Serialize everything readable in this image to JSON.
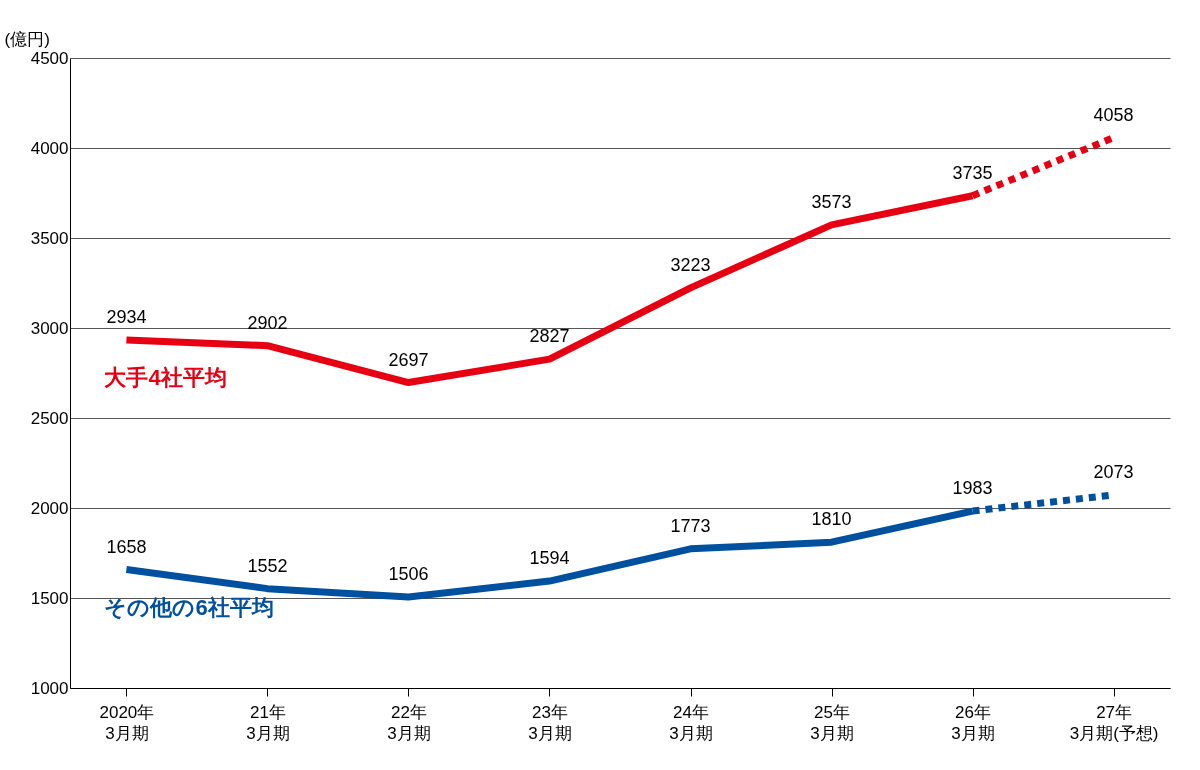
{
  "chart_data": {
    "type": "line",
    "ylabel": "(億円)",
    "categories": [
      "2020年\n3月期",
      "21年\n3月期",
      "22年\n3月期",
      "23年\n3月期",
      "24年\n3月期",
      "25年\n3月期",
      "26年\n3月期",
      "27年\n3月期(予想)"
    ],
    "ylim": [
      1000,
      4500
    ],
    "yticks": [
      1000,
      1500,
      2000,
      2500,
      3000,
      3500,
      4000,
      4500
    ],
    "grid": "y",
    "series": [
      {
        "name": "大手4社平均",
        "color": "#e60012",
        "line_style": "solid",
        "values": [
          2934,
          2902,
          2697,
          2827,
          3223,
          3573,
          3735,
          null
        ],
        "value_labels": [
          "2934",
          "2902",
          "2697",
          "2827",
          "3223",
          "3573",
          "3735",
          null
        ]
      },
      {
        "color": "#e60012",
        "line_style": "dotted",
        "values": [
          null,
          null,
          null,
          null,
          null,
          null,
          3735,
          4058
        ],
        "value_labels": [
          null,
          null,
          null,
          null,
          null,
          null,
          null,
          "4058"
        ]
      },
      {
        "name": "その他の6社平均",
        "color": "#0050a0",
        "line_style": "solid",
        "values": [
          1658,
          1552,
          1506,
          1594,
          1773,
          1810,
          1983,
          null
        ],
        "value_labels": [
          "1658",
          "1552",
          "1506",
          "1594",
          "1773",
          "1810",
          "1983",
          null
        ]
      },
      {
        "color": "#0050a0",
        "line_style": "dotted",
        "values": [
          null,
          null,
          null,
          null,
          null,
          null,
          1983,
          2073
        ],
        "value_labels": [
          null,
          null,
          null,
          null,
          null,
          null,
          null,
          "2073"
        ]
      }
    ]
  }
}
